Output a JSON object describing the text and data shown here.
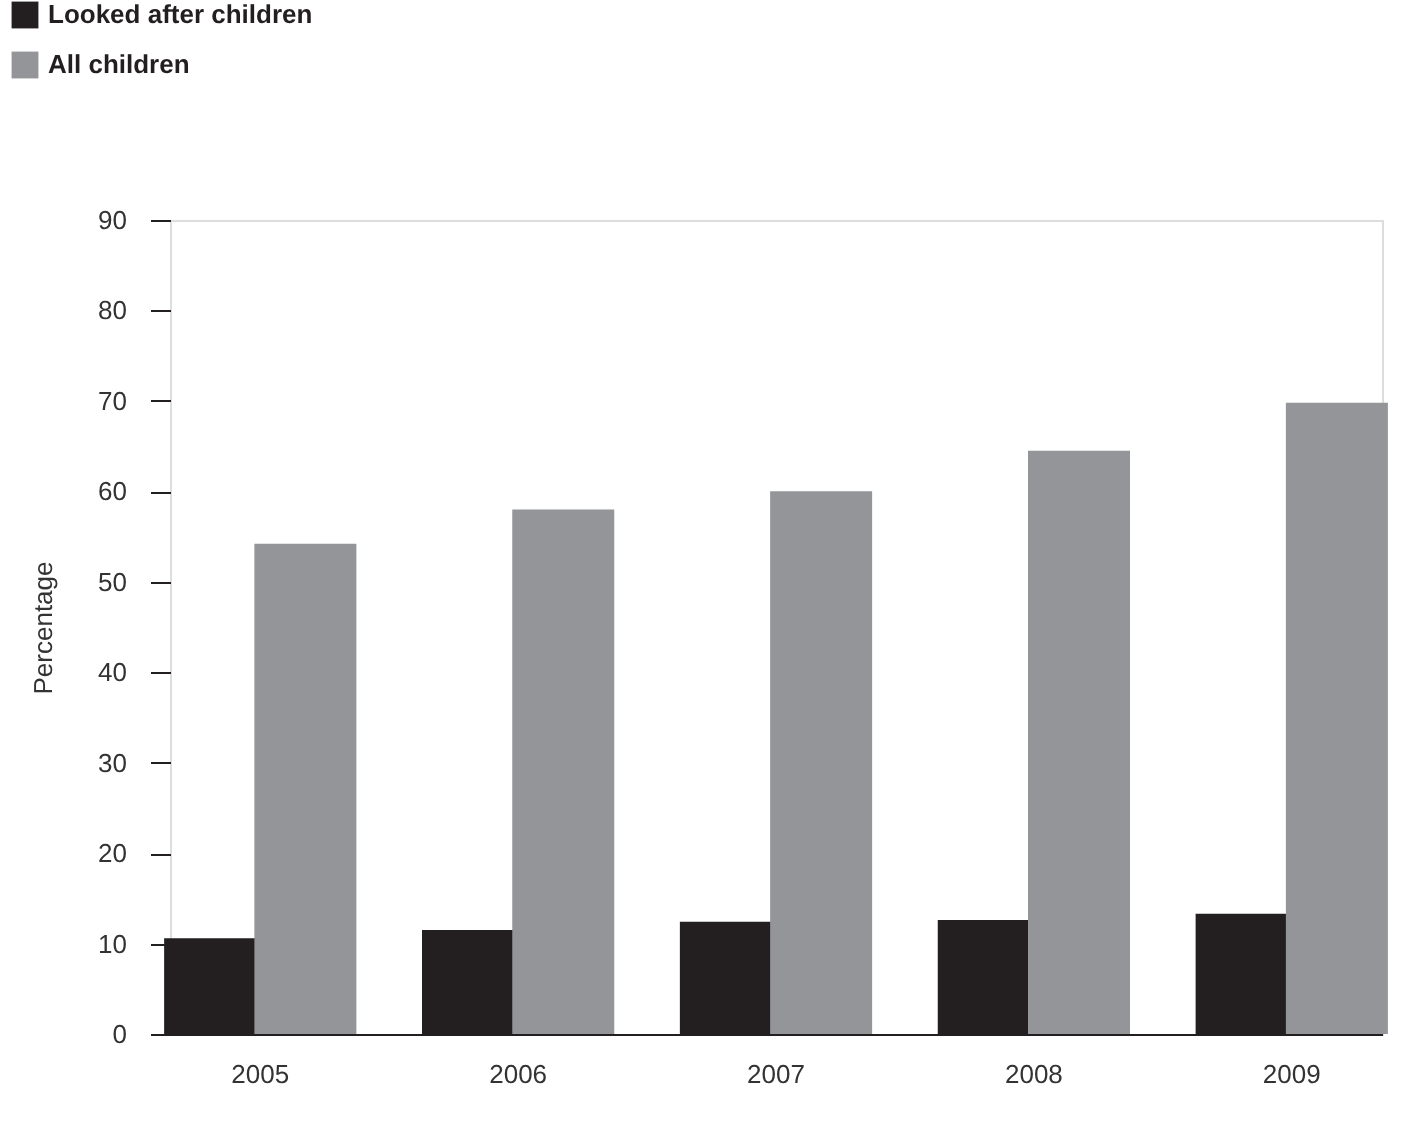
{
  "chart_data": {
    "type": "bar",
    "ylabel": "Percentage",
    "categories": [
      "2005",
      "2006",
      "2007",
      "2008",
      "2009"
    ],
    "series": [
      {
        "name": "Looked after children",
        "color": "#231f20",
        "values": [
          10.6,
          11.5,
          12.4,
          12.6,
          13.3
        ]
      },
      {
        "name": "All children",
        "color": "#939598",
        "values": [
          54.2,
          58.0,
          60.0,
          64.5,
          69.8
        ]
      }
    ],
    "ylim": [
      0,
      90
    ],
    "yticks": [
      0,
      10,
      20,
      30,
      40,
      50,
      60,
      70,
      80,
      90
    ],
    "grid": false,
    "legend": "top left"
  }
}
